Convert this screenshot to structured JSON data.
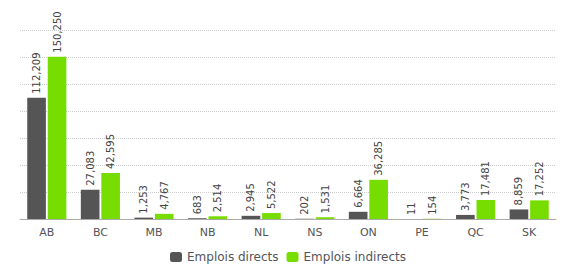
{
  "chart_data": {
    "type": "bar",
    "categories": [
      "AB",
      "BC",
      "MB",
      "NB",
      "NL",
      "NS",
      "ON",
      "PE",
      "QC",
      "SK"
    ],
    "series": [
      {
        "name": "Emplois directs",
        "color": "#555555",
        "values": [
          112209,
          27083,
          1253,
          683,
          2945,
          202,
          6664,
          11,
          3773,
          8859
        ],
        "value_labels": [
          "112,209",
          "27,083",
          "1,253",
          "683",
          "2,945",
          "202",
          "6,664",
          "11",
          "3,773",
          "8,859"
        ]
      },
      {
        "name": "Emplois indirects",
        "color": "#77dd00",
        "values": [
          150250,
          42595,
          4767,
          2514,
          5522,
          1531,
          36285,
          154,
          17481,
          17252
        ],
        "value_labels": [
          "150,250",
          "42,595",
          "4,767",
          "2,514",
          "5,522",
          "1,531",
          "36,285",
          "154",
          "17,481",
          "17,252"
        ]
      }
    ],
    "ylim": [
      0,
      175000
    ],
    "yticks": [
      0,
      25000,
      50000,
      75000,
      100000,
      125000,
      150000,
      175000
    ],
    "grid": true,
    "legend": "bottom",
    "data_labels": true,
    "tick_labels": "x"
  }
}
